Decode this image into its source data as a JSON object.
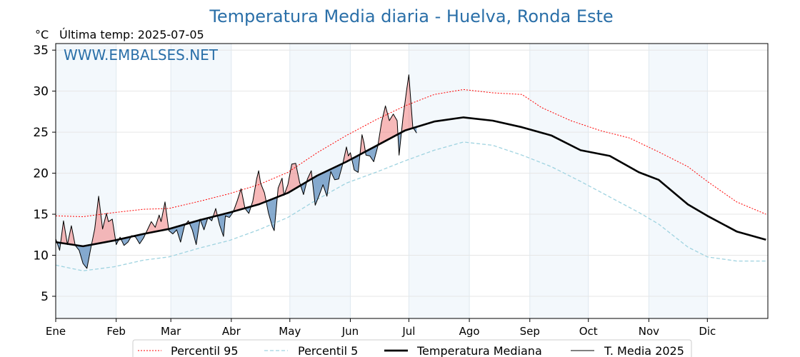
{
  "title": "Temperatura Media diaria - Huelva, Ronda Este",
  "unit_label": "°C",
  "last_temp_label": "Última temp: 2025-07-05",
  "watermark": "WWW.EMBALSES.NET",
  "colors": {
    "title": "#2a6fa8",
    "p95": "#ff0000",
    "p5": "#9fd3e0",
    "median": "#000000",
    "media2025": "#000000",
    "above_fill": "#f08080",
    "below_fill": "#5f8fbf",
    "band": "#f3f8fc"
  },
  "chart_data": {
    "type": "line",
    "title": "Temperatura Media diaria - Huelva, Ronda Este",
    "ylabel": "°C",
    "ylim": [
      2.3,
      35.8
    ],
    "yticks": [
      5,
      10,
      15,
      20,
      25,
      30,
      35
    ],
    "months": [
      "Ene",
      "Feb",
      "Mar",
      "Abr",
      "May",
      "Jun",
      "Jul",
      "Ago",
      "Sep",
      "Oct",
      "Nov",
      "Dic"
    ],
    "grid": true,
    "legend": [
      "Percentil 95",
      "Percentil 5",
      "Temperatura Mediana",
      "T. Media 2025"
    ],
    "legend_position": "bottom",
    "series": [
      {
        "name": "Percentil 95",
        "style": "dotted",
        "points": [
          [
            1,
            14.8
          ],
          [
            15,
            14.7
          ],
          [
            31,
            15.2
          ],
          [
            46,
            15.6
          ],
          [
            59,
            15.7
          ],
          [
            75,
            16.6
          ],
          [
            90,
            17.5
          ],
          [
            105,
            18.6
          ],
          [
            120,
            20.1
          ],
          [
            135,
            22.5
          ],
          [
            150,
            24.6
          ],
          [
            165,
            26.5
          ],
          [
            180,
            28.2
          ],
          [
            195,
            29.6
          ],
          [
            210,
            30.2
          ],
          [
            225,
            29.8
          ],
          [
            240,
            29.6
          ],
          [
            250,
            28.0
          ],
          [
            265,
            26.4
          ],
          [
            280,
            25.2
          ],
          [
            295,
            24.3
          ],
          [
            310,
            22.6
          ],
          [
            325,
            20.8
          ],
          [
            335,
            19.0
          ],
          [
            350,
            16.5
          ],
          [
            365,
            15.0
          ]
        ]
      },
      {
        "name": "Percentil 5",
        "style": "dashed",
        "points": [
          [
            1,
            8.8
          ],
          [
            15,
            8.1
          ],
          [
            31,
            8.6
          ],
          [
            46,
            9.4
          ],
          [
            59,
            9.8
          ],
          [
            75,
            10.9
          ],
          [
            90,
            11.8
          ],
          [
            105,
            13.1
          ],
          [
            120,
            14.6
          ],
          [
            135,
            16.8
          ],
          [
            150,
            18.8
          ],
          [
            165,
            20.1
          ],
          [
            180,
            21.5
          ],
          [
            195,
            22.8
          ],
          [
            210,
            23.8
          ],
          [
            225,
            23.4
          ],
          [
            240,
            22.2
          ],
          [
            255,
            20.8
          ],
          [
            270,
            19.0
          ],
          [
            285,
            17.1
          ],
          [
            300,
            15.2
          ],
          [
            310,
            13.8
          ],
          [
            325,
            11.0
          ],
          [
            335,
            9.8
          ],
          [
            350,
            9.3
          ],
          [
            365,
            9.3
          ]
        ]
      },
      {
        "name": "Temperatura Mediana",
        "style": "thick",
        "points": [
          [
            1,
            11.6
          ],
          [
            15,
            11.1
          ],
          [
            31,
            11.8
          ],
          [
            46,
            12.6
          ],
          [
            59,
            13.2
          ],
          [
            75,
            14.3
          ],
          [
            90,
            15.2
          ],
          [
            105,
            16.2
          ],
          [
            120,
            17.6
          ],
          [
            135,
            19.7
          ],
          [
            150,
            21.4
          ],
          [
            165,
            23.3
          ],
          [
            180,
            25.2
          ],
          [
            195,
            26.3
          ],
          [
            210,
            26.8
          ],
          [
            225,
            26.4
          ],
          [
            240,
            25.6
          ],
          [
            255,
            24.6
          ],
          [
            270,
            22.8
          ],
          [
            285,
            22.1
          ],
          [
            300,
            20.1
          ],
          [
            310,
            19.2
          ],
          [
            325,
            16.2
          ],
          [
            335,
            14.8
          ],
          [
            350,
            12.9
          ],
          [
            365,
            11.9
          ]
        ]
      },
      {
        "name": "T. Media 2025",
        "style": "thin",
        "points": [
          [
            1,
            12.0
          ],
          [
            3,
            10.6
          ],
          [
            5,
            14.2
          ],
          [
            7,
            11.3
          ],
          [
            9,
            13.6
          ],
          [
            11,
            11.2
          ],
          [
            13,
            10.6
          ],
          [
            15,
            9.0
          ],
          [
            17,
            8.4
          ],
          [
            19,
            10.9
          ],
          [
            21,
            13.2
          ],
          [
            23,
            17.2
          ],
          [
            25,
            13.2
          ],
          [
            27,
            15.1
          ],
          [
            28,
            14.1
          ],
          [
            30,
            14.4
          ],
          [
            32,
            11.3
          ],
          [
            34,
            12.2
          ],
          [
            36,
            11.2
          ],
          [
            38,
            11.6
          ],
          [
            40,
            12.4
          ],
          [
            42,
            12.2
          ],
          [
            44,
            11.4
          ],
          [
            46,
            12.1
          ],
          [
            48,
            13.1
          ],
          [
            50,
            14.1
          ],
          [
            52,
            13.4
          ],
          [
            54,
            14.9
          ],
          [
            55,
            14.1
          ],
          [
            57,
            16.5
          ],
          [
            59,
            13.0
          ],
          [
            61,
            12.6
          ],
          [
            63,
            13.1
          ],
          [
            65,
            11.6
          ],
          [
            67,
            13.6
          ],
          [
            69,
            14.2
          ],
          [
            71,
            13.1
          ],
          [
            73,
            11.3
          ],
          [
            75,
            14.4
          ],
          [
            77,
            13.1
          ],
          [
            79,
            14.6
          ],
          [
            81,
            14.2
          ],
          [
            83,
            15.7
          ],
          [
            85,
            13.7
          ],
          [
            87,
            12.3
          ],
          [
            88,
            14.8
          ],
          [
            90,
            14.6
          ],
          [
            92,
            15.3
          ],
          [
            94,
            16.6
          ],
          [
            96,
            18.1
          ],
          [
            98,
            15.7
          ],
          [
            100,
            15.1
          ],
          [
            102,
            16.6
          ],
          [
            104,
            19.3
          ],
          [
            105,
            20.3
          ],
          [
            106,
            18.8
          ],
          [
            108,
            17.6
          ],
          [
            110,
            15.2
          ],
          [
            112,
            13.5
          ],
          [
            113,
            13.0
          ],
          [
            115,
            18.2
          ],
          [
            117,
            19.4
          ],
          [
            118,
            17.3
          ],
          [
            120,
            18.6
          ],
          [
            122,
            21.1
          ],
          [
            124,
            21.2
          ],
          [
            126,
            18.9
          ],
          [
            128,
            17.4
          ],
          [
            130,
            19.3
          ],
          [
            132,
            20.3
          ],
          [
            134,
            16.1
          ],
          [
            136,
            17.3
          ],
          [
            138,
            18.6
          ],
          [
            140,
            17.2
          ],
          [
            142,
            20.2
          ],
          [
            144,
            19.2
          ],
          [
            146,
            19.3
          ],
          [
            148,
            21.0
          ],
          [
            150,
            23.2
          ],
          [
            151,
            22.1
          ],
          [
            152,
            22.5
          ],
          [
            154,
            20.4
          ],
          [
            156,
            20.1
          ],
          [
            158,
            24.7
          ],
          [
            159,
            23.7
          ],
          [
            160,
            22.2
          ],
          [
            162,
            22.1
          ],
          [
            164,
            21.4
          ],
          [
            166,
            23.2
          ],
          [
            168,
            26.2
          ],
          [
            170,
            28.2
          ],
          [
            172,
            26.4
          ],
          [
            174,
            27.2
          ],
          [
            176,
            26.4
          ],
          [
            177,
            22.2
          ],
          [
            179,
            26.8
          ],
          [
            181,
            30.4
          ],
          [
            182,
            32.0
          ],
          [
            184,
            25.6
          ],
          [
            186,
            24.9
          ]
        ]
      }
    ]
  },
  "legend": {
    "p95": "Percentil 95",
    "p5": "Percentil 5",
    "median": "Temperatura Mediana",
    "media2025": "T. Media 2025"
  }
}
